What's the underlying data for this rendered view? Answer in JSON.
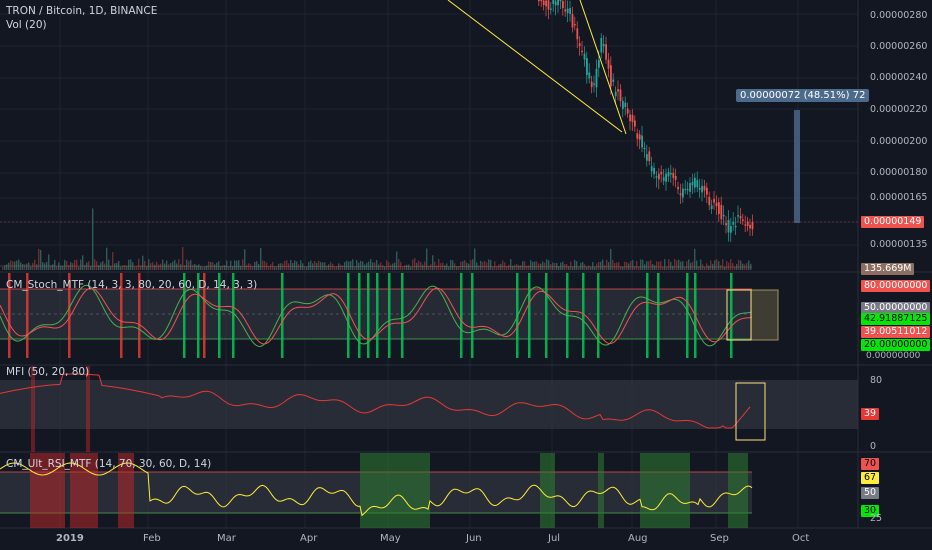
{
  "header": {
    "symbol": "TRON / Bitcoin, 1D, BINANCE",
    "volume": "Vol (20)"
  },
  "price_axis": {
    "ticks": [
      "0.00000280",
      "0.00000260",
      "0.00000240",
      "0.00000220",
      "0.00000200",
      "0.00000180",
      "0.00000165",
      "0.00000135"
    ],
    "current_price": "0.00000149",
    "volume_value": "135.669M"
  },
  "measure_label": "0.00000072 (48.51%) 72",
  "stoch": {
    "title": "CM_Stoch_MTF (14, 3, 3, 80, 20, 60, D, 14, 3, 3)",
    "tags": [
      "80.00000000",
      "50.00000000",
      "42.91887125",
      "39.00511012",
      "20.00000000",
      "0.00000000"
    ]
  },
  "mfi": {
    "title": "MFI (50, 20, 80)",
    "ticks": [
      "80",
      "0"
    ],
    "value": "39"
  },
  "rsi": {
    "title": "CM_Ult_RSI_MTF (14, 70, 30, 60, D, 14)",
    "tags": [
      "70",
      "67",
      "50",
      "30",
      "25"
    ]
  },
  "time_axis": [
    "2019",
    "Feb",
    "Mar",
    "Apr",
    "May",
    "Jun",
    "Jul",
    "Aug",
    "Sep",
    "Oct"
  ],
  "colors": {
    "bg": "#131722",
    "up": "#26a69a",
    "down": "#ef5350",
    "stoch_k": "#4caf50",
    "stoch_d": "#ef5350",
    "mfi_line": "#e53935",
    "rsi_line": "#ffeb3b",
    "trendline": "#ffeb3b"
  }
}
